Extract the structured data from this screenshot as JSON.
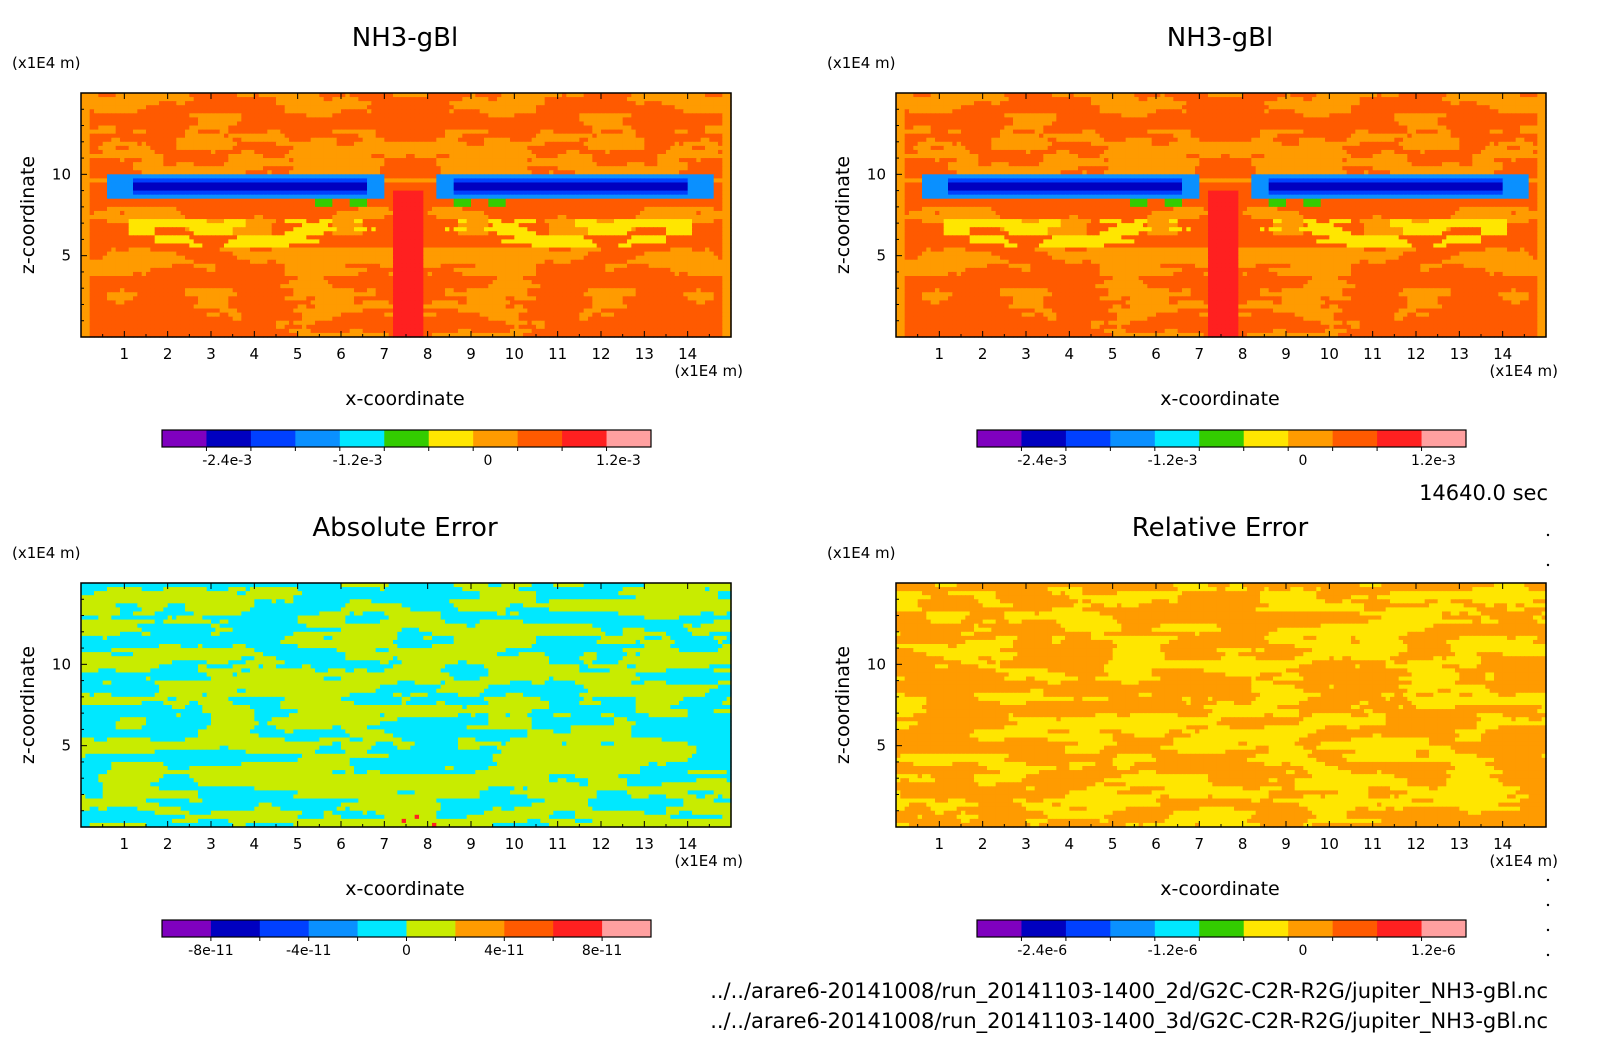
{
  "time_label": "14640.0 sec",
  "file_paths": [
    "../../arare6-20141008/run_20141103-1400_2d/G2C-C2R-R2G/jupiter_NH3-gBl.nc",
    "../../arare6-20141008/run_20141103-1400_3d/G2C-C2R-R2G/jupiter_NH3-gBl.nc"
  ],
  "palette": [
    "#7f00bf",
    "#0000c0",
    "#0040ff",
    "#0a90ff",
    "#00e8ff",
    "#33cc00",
    "#ffe600",
    "#ff9b00",
    "#ff5a00",
    "#ff2020",
    "#ffa0a0"
  ],
  "palette_abs": [
    "#7f00bf",
    "#0000c0",
    "#0040ff",
    "#0a90ff",
    "#00e8ff",
    "#c8ec00",
    "#ff9b00",
    "#ff5a00",
    "#ff2020",
    "#ffa0a0"
  ],
  "chart_data": [
    {
      "type": "heatmap",
      "panel": "top-left",
      "title": "NH3-gBl",
      "xlabel": "x-coordinate",
      "ylabel": "z-coordinate",
      "x_unit": "(x1E4 m)",
      "y_unit": "(x1E4 m)",
      "xlim": [
        0,
        15
      ],
      "ylim": [
        0,
        15
      ],
      "x_ticks": [
        "1",
        "2",
        "3",
        "4",
        "5",
        "6",
        "7",
        "8",
        "9",
        "10",
        "11",
        "12",
        "13",
        "14"
      ],
      "y_ticks": [
        "5",
        "10"
      ],
      "field": "ammonia-bands",
      "colorbar": {
        "ticks": [
          "-2.4e-3",
          "-1.2e-3",
          "0",
          "1.2e-3"
        ],
        "range": [
          -0.003,
          0.0015
        ],
        "bins": 11
      }
    },
    {
      "type": "heatmap",
      "panel": "top-right",
      "title": "NH3-gBl",
      "xlabel": "x-coordinate",
      "ylabel": "z-coordinate",
      "x_unit": "(x1E4 m)",
      "y_unit": "(x1E4 m)",
      "xlim": [
        0,
        15
      ],
      "ylim": [
        0,
        15
      ],
      "x_ticks": [
        "1",
        "2",
        "3",
        "4",
        "5",
        "6",
        "7",
        "8",
        "9",
        "10",
        "11",
        "12",
        "13",
        "14"
      ],
      "y_ticks": [
        "5",
        "10"
      ],
      "field": "ammonia-bands",
      "colorbar": {
        "ticks": [
          "-2.4e-3",
          "-1.2e-3",
          "0",
          "1.2e-3"
        ],
        "range": [
          -0.003,
          0.0015
        ],
        "bins": 11
      }
    },
    {
      "type": "heatmap",
      "panel": "bottom-left",
      "title": "Absolute Error",
      "xlabel": "x-coordinate",
      "ylabel": "z-coordinate",
      "x_unit": "(x1E4 m)",
      "y_unit": "(x1E4 m)",
      "xlim": [
        0,
        15
      ],
      "ylim": [
        0,
        15
      ],
      "x_ticks": [
        "1",
        "2",
        "3",
        "4",
        "5",
        "6",
        "7",
        "8",
        "9",
        "10",
        "11",
        "12",
        "13",
        "14"
      ],
      "y_ticks": [
        "5",
        "10"
      ],
      "field": "noise-abs",
      "colorbar": {
        "ticks": [
          "-8e-11",
          "-4e-11",
          "0",
          "4e-11",
          "8e-11"
        ],
        "range": [
          -1e-10,
          1e-10
        ],
        "bins": 10
      }
    },
    {
      "type": "heatmap",
      "panel": "bottom-right",
      "title": "Relative Error",
      "xlabel": "x-coordinate",
      "ylabel": "z-coordinate",
      "x_unit": "(x1E4 m)",
      "y_unit": "(x1E4 m)",
      "xlim": [
        0,
        15
      ],
      "ylim": [
        0,
        15
      ],
      "x_ticks": [
        "1",
        "2",
        "3",
        "4",
        "5",
        "6",
        "7",
        "8",
        "9",
        "10",
        "11",
        "12",
        "13",
        "14"
      ],
      "y_ticks": [
        "5",
        "10"
      ],
      "field": "noise-rel",
      "colorbar": {
        "ticks": [
          "-2.4e-6",
          "-1.2e-6",
          "0",
          "1.2e-6"
        ],
        "range": [
          -3e-06,
          1.5e-06
        ],
        "bins": 11
      }
    }
  ]
}
